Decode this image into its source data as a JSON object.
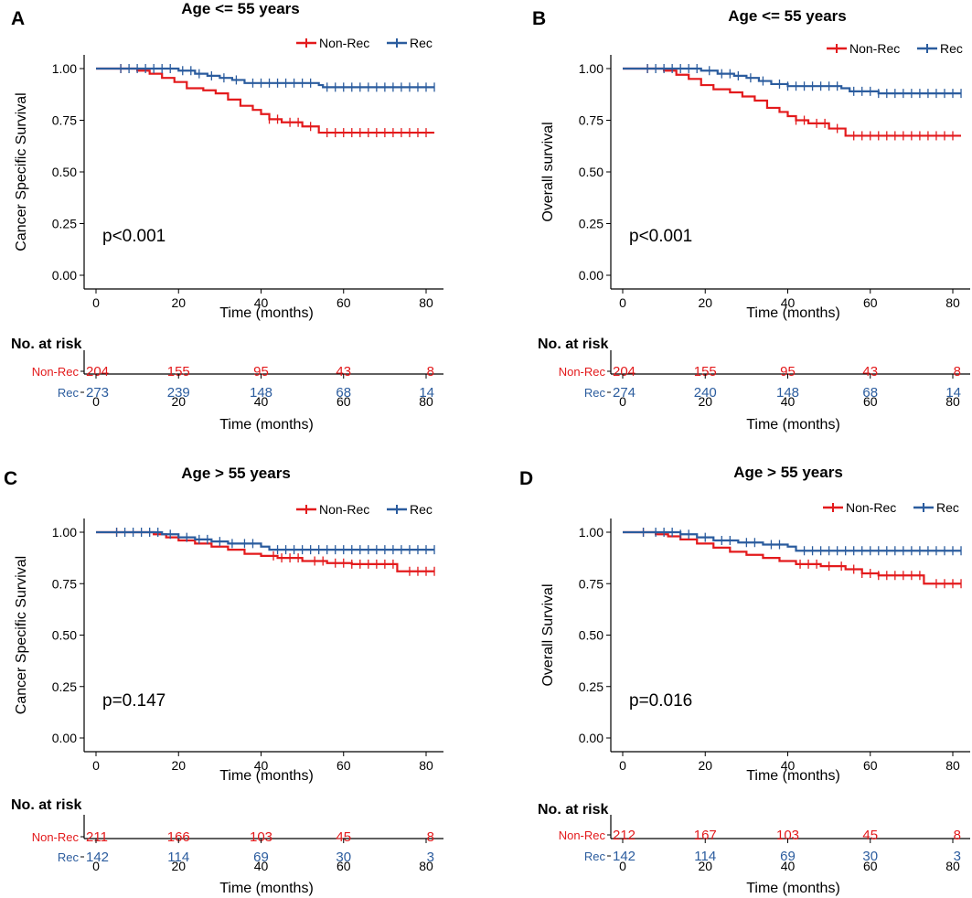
{
  "figure": {
    "colors": {
      "non_rec": "#e31a1c",
      "rec": "#2b5c9e",
      "axis": "#000000"
    },
    "time_label": "Time (months)",
    "risk_heading": "No. at risk",
    "p_prefix": ""
  },
  "chart_data": [
    {
      "panel": "A",
      "type": "line",
      "title": "Age <= 55 years",
      "xlabel": "Time (months)",
      "ylabel": "Cancer Specific Survival",
      "xlim": [
        0,
        82
      ],
      "ylim": [
        0,
        1
      ],
      "xticks": [
        0,
        20,
        40,
        60,
        80
      ],
      "yticks": [
        "0.00",
        "0.25",
        "0.50",
        "0.75",
        "1.00"
      ],
      "legend": [
        "Non-Rec",
        "Rec"
      ],
      "legend_placement": "top-right",
      "p_value": "p<0.001",
      "series": [
        {
          "name": "Non-Rec",
          "color": "#e31a1c",
          "points": [
            [
              0,
              1
            ],
            [
              10,
              0.99
            ],
            [
              13,
              0.975
            ],
            [
              16,
              0.955
            ],
            [
              19,
              0.935
            ],
            [
              22,
              0.905
            ],
            [
              26,
              0.895
            ],
            [
              29,
              0.88
            ],
            [
              32,
              0.85
            ],
            [
              35,
              0.82
            ],
            [
              38,
              0.8
            ],
            [
              40,
              0.78
            ],
            [
              42,
              0.755
            ],
            [
              45,
              0.74
            ],
            [
              50,
              0.72
            ],
            [
              54,
              0.69
            ],
            [
              82,
              0.69
            ]
          ],
          "censor": [
            6,
            42,
            44,
            47,
            49,
            52,
            56,
            58,
            60,
            62,
            64,
            66,
            68,
            70,
            72,
            74,
            76,
            78,
            80
          ]
        },
        {
          "name": "Rec",
          "color": "#2b5c9e",
          "points": [
            [
              0,
              1
            ],
            [
              20,
              0.99
            ],
            [
              24,
              0.975
            ],
            [
              27,
              0.965
            ],
            [
              30,
              0.955
            ],
            [
              33,
              0.945
            ],
            [
              36,
              0.93
            ],
            [
              54,
              0.92
            ],
            [
              55,
              0.91
            ],
            [
              82,
              0.91
            ]
          ],
          "censor": [
            6,
            8,
            10,
            12,
            14,
            16,
            18,
            21,
            23,
            25,
            28,
            31,
            34,
            38,
            40,
            42,
            44,
            46,
            48,
            50,
            52,
            56,
            58,
            60,
            62,
            64,
            66,
            68,
            70,
            72,
            74,
            76,
            78,
            80,
            82
          ]
        }
      ],
      "risk_table": {
        "times": [
          0,
          20,
          40,
          60,
          80
        ],
        "rows": [
          {
            "label": "Non-Rec",
            "values": [
              "204",
              "155",
              "95",
              "43",
              "8"
            ]
          },
          {
            "label": "Rec",
            "values": [
              "273",
              "239",
              "148",
              "68",
              "14"
            ]
          }
        ]
      }
    },
    {
      "panel": "B",
      "type": "line",
      "title": "Age <= 55 years",
      "xlabel": "Time (months)",
      "ylabel": "Overall survival",
      "xlim": [
        0,
        82
      ],
      "ylim": [
        0,
        1
      ],
      "xticks": [
        0,
        20,
        40,
        60,
        80
      ],
      "yticks": [
        "0.00",
        "0.25",
        "0.50",
        "0.75",
        "1.00"
      ],
      "legend": [
        "Non-Rec",
        "Rec"
      ],
      "legend_placement": "top-right",
      "p_value": "p<0.001",
      "series": [
        {
          "name": "Non-Rec",
          "color": "#e31a1c",
          "points": [
            [
              0,
              1
            ],
            [
              10,
              0.99
            ],
            [
              13,
              0.97
            ],
            [
              16,
              0.95
            ],
            [
              19,
              0.92
            ],
            [
              22,
              0.9
            ],
            [
              26,
              0.885
            ],
            [
              29,
              0.865
            ],
            [
              32,
              0.845
            ],
            [
              35,
              0.81
            ],
            [
              38,
              0.79
            ],
            [
              40,
              0.77
            ],
            [
              42,
              0.75
            ],
            [
              45,
              0.735
            ],
            [
              50,
              0.71
            ],
            [
              54,
              0.675
            ],
            [
              82,
              0.675
            ]
          ],
          "censor": [
            6,
            42,
            44,
            47,
            49,
            52,
            56,
            58,
            60,
            62,
            64,
            66,
            68,
            70,
            72,
            74,
            76,
            78,
            80
          ]
        },
        {
          "name": "Rec",
          "color": "#2b5c9e",
          "points": [
            [
              0,
              1
            ],
            [
              19,
              0.99
            ],
            [
              23,
              0.975
            ],
            [
              27,
              0.965
            ],
            [
              30,
              0.955
            ],
            [
              33,
              0.94
            ],
            [
              36,
              0.925
            ],
            [
              40,
              0.915
            ],
            [
              53,
              0.905
            ],
            [
              55,
              0.89
            ],
            [
              62,
              0.88
            ],
            [
              82,
              0.88
            ]
          ],
          "censor": [
            6,
            8,
            10,
            12,
            14,
            16,
            18,
            21,
            24,
            26,
            28,
            31,
            34,
            38,
            40,
            42,
            44,
            46,
            48,
            50,
            52,
            56,
            58,
            60,
            62,
            64,
            66,
            68,
            70,
            72,
            74,
            76,
            78,
            80,
            82
          ]
        }
      ],
      "risk_table": {
        "times": [
          0,
          20,
          40,
          60,
          80
        ],
        "rows": [
          {
            "label": "Non-Rec",
            "values": [
              "204",
              "155",
              "95",
              "43",
              "8"
            ]
          },
          {
            "label": "Rec",
            "values": [
              "274",
              "240",
              "148",
              "68",
              "14"
            ]
          }
        ]
      }
    },
    {
      "panel": "C",
      "type": "line",
      "title": "Age > 55 years",
      "xlabel": "Time (months)",
      "ylabel": "Cancer Specific Survival",
      "xlim": [
        0,
        82
      ],
      "ylim": [
        0,
        1
      ],
      "xticks": [
        0,
        20,
        40,
        60,
        80
      ],
      "yticks": [
        "0.00",
        "0.25",
        "0.50",
        "0.75",
        "1.00"
      ],
      "legend": [
        "Non-Rec",
        "Rec"
      ],
      "legend_placement": "top-right",
      "p_value": "p=0.147",
      "series": [
        {
          "name": "Non-Rec",
          "color": "#e31a1c",
          "points": [
            [
              0,
              1
            ],
            [
              14,
              0.99
            ],
            [
              17,
              0.975
            ],
            [
              20,
              0.96
            ],
            [
              24,
              0.945
            ],
            [
              28,
              0.93
            ],
            [
              32,
              0.915
            ],
            [
              36,
              0.895
            ],
            [
              40,
              0.885
            ],
            [
              44,
              0.875
            ],
            [
              50,
              0.86
            ],
            [
              56,
              0.85
            ],
            [
              62,
              0.845
            ],
            [
              73,
              0.81
            ],
            [
              82,
              0.81
            ]
          ],
          "censor": [
            5,
            43,
            45,
            47,
            49,
            53,
            55,
            58,
            60,
            62,
            64,
            66,
            68,
            70,
            72,
            76,
            78,
            80,
            82
          ]
        },
        {
          "name": "Rec",
          "color": "#2b5c9e",
          "points": [
            [
              0,
              1
            ],
            [
              16,
              0.99
            ],
            [
              20,
              0.975
            ],
            [
              24,
              0.965
            ],
            [
              28,
              0.955
            ],
            [
              32,
              0.945
            ],
            [
              40,
              0.93
            ],
            [
              42,
              0.915
            ],
            [
              82,
              0.915
            ]
          ],
          "censor": [
            5,
            7,
            9,
            11,
            13,
            15,
            18,
            22,
            25,
            27,
            30,
            33,
            36,
            38,
            44,
            46,
            48,
            50,
            52,
            54,
            56,
            58,
            60,
            62,
            64,
            66,
            68,
            70,
            72,
            74,
            76,
            78,
            80,
            82
          ]
        }
      ],
      "risk_table": {
        "times": [
          0,
          20,
          40,
          60,
          80
        ],
        "rows": [
          {
            "label": "Non-Rec",
            "values": [
              "211",
              "166",
              "103",
              "45",
              "8"
            ]
          },
          {
            "label": "Rec",
            "values": [
              "142",
              "114",
              "69",
              "30",
              "3"
            ]
          }
        ]
      }
    },
    {
      "panel": "D",
      "type": "line",
      "title": "Age > 55 years",
      "xlabel": "Time (months)",
      "ylabel": "Overall Survival",
      "xlim": [
        0,
        82
      ],
      "ylim": [
        0,
        1
      ],
      "xticks": [
        0,
        20,
        40,
        60,
        80
      ],
      "yticks": [
        "0.00",
        "0.25",
        "0.50",
        "0.75",
        "1.00"
      ],
      "legend": [
        "Non-Rec",
        "Rec"
      ],
      "legend_placement": "top-right",
      "p_value": "p=0.016",
      "series": [
        {
          "name": "Non-Rec",
          "color": "#e31a1c",
          "points": [
            [
              0,
              1
            ],
            [
              8,
              0.99
            ],
            [
              11,
              0.98
            ],
            [
              14,
              0.965
            ],
            [
              18,
              0.945
            ],
            [
              22,
              0.925
            ],
            [
              26,
              0.905
            ],
            [
              30,
              0.89
            ],
            [
              34,
              0.875
            ],
            [
              38,
              0.86
            ],
            [
              42,
              0.845
            ],
            [
              48,
              0.835
            ],
            [
              54,
              0.82
            ],
            [
              58,
              0.8
            ],
            [
              62,
              0.79
            ],
            [
              73,
              0.75
            ],
            [
              82,
              0.75
            ]
          ],
          "censor": [
            5,
            43,
            45,
            47,
            50,
            53,
            56,
            58,
            60,
            62,
            64,
            66,
            68,
            70,
            72,
            76,
            78,
            80,
            82
          ]
        },
        {
          "name": "Rec",
          "color": "#2b5c9e",
          "points": [
            [
              0,
              1
            ],
            [
              14,
              0.99
            ],
            [
              18,
              0.975
            ],
            [
              22,
              0.96
            ],
            [
              28,
              0.95
            ],
            [
              34,
              0.94
            ],
            [
              40,
              0.93
            ],
            [
              42,
              0.91
            ],
            [
              82,
              0.91
            ]
          ],
          "censor": [
            5,
            8,
            10,
            12,
            14,
            16,
            20,
            24,
            26,
            30,
            32,
            36,
            38,
            44,
            46,
            48,
            50,
            52,
            54,
            56,
            58,
            60,
            62,
            64,
            66,
            68,
            70,
            72,
            74,
            76,
            78,
            80,
            82
          ]
        }
      ],
      "risk_table": {
        "times": [
          0,
          20,
          40,
          60,
          80
        ],
        "rows": [
          {
            "label": "Non-Rec",
            "values": [
              "212",
              "167",
              "103",
              "45",
              "8"
            ]
          },
          {
            "label": "Rec",
            "values": [
              "142",
              "114",
              "69",
              "30",
              "3"
            ]
          }
        ]
      }
    }
  ]
}
